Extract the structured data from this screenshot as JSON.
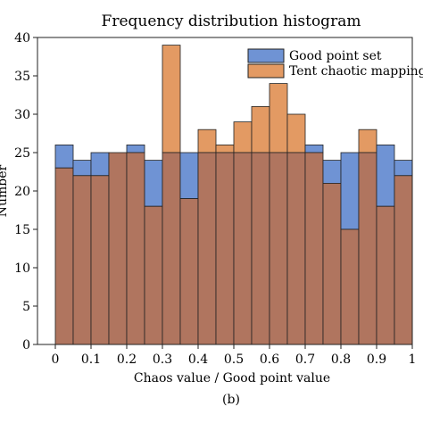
{
  "chart_data": {
    "type": "bar",
    "title": "Frequency distribution histogram",
    "xlabel": "Chaos value / Good point value",
    "ylabel": "Number",
    "caption": "(b)",
    "xlim": [
      -0.05,
      1.0
    ],
    "ylim": [
      0,
      40
    ],
    "bin_width": 0.05,
    "x_ticks": [
      0,
      0.1,
      0.2,
      0.3,
      0.4,
      0.5,
      0.6,
      0.7,
      0.8,
      0.9,
      1
    ],
    "x_tick_labels": [
      "0",
      "0.1",
      "0.2",
      "0.3",
      "0.4",
      "0.5",
      "0.6",
      "0.7",
      "0.8",
      "0.9",
      "1"
    ],
    "y_ticks": [
      0,
      5,
      10,
      15,
      20,
      25,
      30,
      35,
      40
    ],
    "y_tick_labels": [
      "0",
      "5",
      "10",
      "15",
      "20",
      "25",
      "30",
      "35",
      "40"
    ],
    "bin_starts": [
      0,
      0.05,
      0.1,
      0.15,
      0.2,
      0.25,
      0.3,
      0.35,
      0.4,
      0.45,
      0.5,
      0.55,
      0.6,
      0.65,
      0.7,
      0.75,
      0.8,
      0.85,
      0.9,
      0.95
    ],
    "legend_position": "top-right",
    "grid": false,
    "series": [
      {
        "name": "Good point set",
        "color": "#6f93d4",
        "values": [
          26,
          24,
          25,
          25,
          26,
          24,
          25,
          25,
          25,
          25,
          25,
          25,
          25,
          25,
          26,
          24,
          25,
          25,
          26,
          24
        ]
      },
      {
        "name": "Tent chaotic mapping",
        "color": "#e39a63",
        "values": [
          23,
          22,
          22,
          25,
          25,
          18,
          39,
          19,
          28,
          26,
          29,
          31,
          34,
          30,
          25,
          21,
          15,
          28,
          18,
          22
        ]
      }
    ],
    "overlap_color": "#b0755f"
  }
}
